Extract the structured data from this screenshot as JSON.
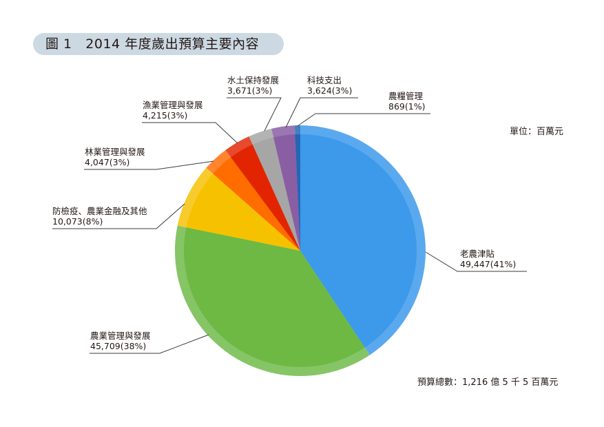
{
  "title": {
    "figure_no": "圖 1",
    "text": "2014 年度歲出預算主要內容"
  },
  "unit_label": "單位：百萬元",
  "total_label": "預算總數：1,216 億 5 千 5 百萬元",
  "chart_data": {
    "type": "pie",
    "title": "2014 年度歲出預算主要內容",
    "unit": "百萬元",
    "total": 121655,
    "start_angle": "12 o'clock",
    "direction": "clockwise",
    "slices": [
      {
        "name": "老農津貼",
        "value": 49447,
        "percent": 41,
        "value_label": "49,447(41%)",
        "color": "#3d99ea",
        "rim": "#5aa9ee"
      },
      {
        "name": "農業管理與發展",
        "value": 45709,
        "percent": 38,
        "value_label": "45,709(38%)",
        "color": "#6eb944",
        "rim": "#86c566"
      },
      {
        "name": "防檢疫、農業金融及其他",
        "value": 10073,
        "percent": 8,
        "value_label": "10,073(8%)",
        "color": "#f6c200",
        "rim": "#f7cb2e"
      },
      {
        "name": "林業管理與發展",
        "value": 4047,
        "percent": 3,
        "value_label": "4,047(3%)",
        "color": "#ff6d00",
        "rim": "#ff852e"
      },
      {
        "name": "漁業管理與發展",
        "value": 4215,
        "percent": 3,
        "value_label": "4,215(3%)",
        "color": "#e32400",
        "rim": "#e74a2e"
      },
      {
        "name": "水土保持發展",
        "value": 3671,
        "percent": 3,
        "value_label": "3,671(3%)",
        "color": "#a6a6a6",
        "rim": "#b3b3b3"
      },
      {
        "name": "科技支出",
        "value": 3624,
        "percent": 3,
        "value_label": "3,624(3%)",
        "color": "#8a5ea3",
        "rim": "#9b76b0"
      },
      {
        "name": "農糧管理",
        "value": 869,
        "percent": 1,
        "value_label": "869(1%)",
        "color": "#2267b5",
        "rim": "#4280c2"
      }
    ]
  },
  "labels": [
    {
      "name": "老農津貼",
      "value": "49,447(41%)"
    },
    {
      "name": "農業管理與發展",
      "value": "45,709(38%)"
    },
    {
      "name": "防檢疫、農業金融及其他",
      "value": "10,073(8%)"
    },
    {
      "name": "林業管理與發展",
      "value": "4,047(3%)"
    },
    {
      "name": "漁業管理與發展",
      "value": "4,215(3%)"
    },
    {
      "name": "水土保持發展",
      "value": "3,671(3%)"
    },
    {
      "name": "科技支出",
      "value": "3,624(3%)"
    },
    {
      "name": "農糧管理",
      "value": "869(1%)"
    }
  ]
}
